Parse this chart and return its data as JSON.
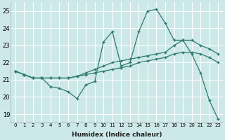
{
  "xlabel": "Humidex (Indice chaleur)",
  "ylabel": "",
  "bg_color": "#cce8e8",
  "grid_color": "#ffffff",
  "line_color": "#2d7a6e",
  "hours": [
    0,
    1,
    2,
    3,
    4,
    5,
    6,
    7,
    8,
    9,
    10,
    11,
    12,
    13,
    14,
    15,
    16,
    17,
    18,
    19,
    20,
    21,
    22,
    23
  ],
  "series": [
    [
      21.5,
      21.3,
      21.1,
      21.1,
      20.6,
      20.5,
      20.3,
      19.9,
      20.7,
      20.9,
      23.2,
      23.8,
      21.8,
      22.0,
      23.8,
      25.0,
      25.1,
      24.3,
      23.3,
      23.3,
      22.5,
      21.4,
      19.8,
      18.7
    ],
    [
      21.5,
      21.3,
      21.1,
      21.1,
      21.1,
      21.1,
      21.1,
      21.2,
      21.4,
      21.6,
      21.8,
      22.0,
      22.1,
      22.2,
      22.3,
      22.4,
      22.5,
      22.6,
      23.0,
      23.3,
      23.3,
      23.0,
      22.8,
      22.5
    ],
    [
      21.5,
      21.3,
      21.1,
      21.1,
      21.1,
      21.1,
      21.1,
      21.2,
      21.3,
      21.4,
      21.5,
      21.6,
      21.7,
      21.8,
      22.0,
      22.1,
      22.2,
      22.3,
      22.5,
      22.6,
      22.6,
      22.5,
      22.3,
      22.0
    ]
  ],
  "ylim": [
    18.5,
    25.5
  ],
  "yticks": [
    19,
    20,
    21,
    22,
    23,
    24,
    25
  ],
  "xticks": [
    0,
    1,
    2,
    3,
    4,
    5,
    6,
    7,
    8,
    9,
    10,
    11,
    12,
    13,
    14,
    15,
    16,
    17,
    18,
    19,
    20,
    21,
    22,
    23
  ]
}
